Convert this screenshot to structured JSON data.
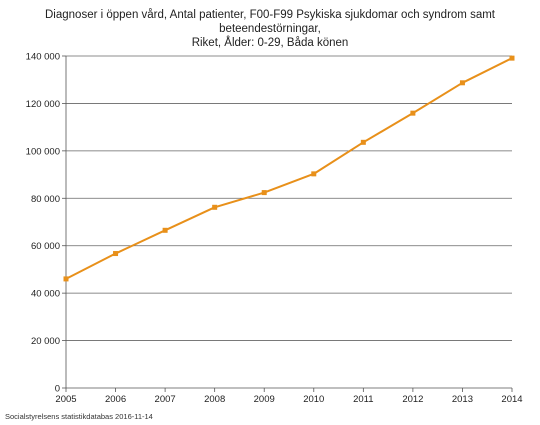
{
  "header": {
    "title_line1": "Diagnoser i öppen vård, Antal patienter, F00-F99 Psykiska sjukdomar och syndrom samt beteendestörningar,",
    "title_line2": "Riket, Ålder: 0-29, Båda könen"
  },
  "footer": {
    "source": "Socialstyrelsens statistikdatabas 2016-11-14"
  },
  "colors": {
    "line": "#e8901a",
    "grid": "#666666",
    "axis": "#555555"
  },
  "chart_data": {
    "type": "line",
    "title": "Diagnoser i öppen vård, Antal patienter, F00-F99 Psykiska sjukdomar och syndrom samt beteendestörningar, Riket, Ålder: 0-29, Båda könen",
    "xlabel": "",
    "ylabel": "",
    "categories": [
      "2005",
      "2006",
      "2007",
      "2008",
      "2009",
      "2010",
      "2011",
      "2012",
      "2013",
      "2014"
    ],
    "series": [
      {
        "values": [
          46000,
          56700,
          66500,
          76200,
          82400,
          90300,
          103600,
          115900,
          128700,
          139100
        ]
      }
    ],
    "ylim": [
      0,
      140000
    ],
    "y_ticks": [
      0,
      20000,
      40000,
      60000,
      80000,
      100000,
      120000,
      140000
    ],
    "y_tick_labels": [
      "0",
      "20 000",
      "40 000",
      "60 000",
      "80 000",
      "100 000",
      "120 000",
      "140 000"
    ],
    "grid": true,
    "legend": "none"
  }
}
